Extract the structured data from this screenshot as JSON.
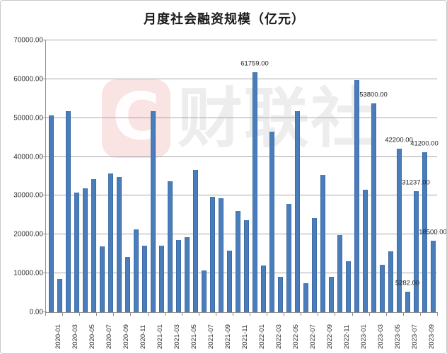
{
  "watermark": {
    "logo_letter": "C",
    "text": "财联社"
  },
  "chart_data": {
    "type": "bar",
    "title": "月度社会融资规模（亿元）",
    "xlabel": "",
    "ylabel": "",
    "ylim": [
      0,
      70000
    ],
    "ytick_step": 10000,
    "ytick_labels": [
      "0.00",
      "10000.00",
      "20000.00",
      "30000.00",
      "40000.00",
      "50000.00",
      "60000.00",
      "70000.00"
    ],
    "grid": true,
    "legend": "none",
    "bar_color": "#4a7ebb",
    "grid_color": "#a6a6a6",
    "x": [
      "2020-01",
      "2020-02",
      "2020-03",
      "2020-04",
      "2020-05",
      "2020-06",
      "2020-07",
      "2020-08",
      "2020-09",
      "2020-10",
      "2020-11",
      "2020-12",
      "2021-01",
      "2021-02",
      "2021-03",
      "2021-04",
      "2021-05",
      "2021-06",
      "2021-07",
      "2021-08",
      "2021-09",
      "2021-10",
      "2021-11",
      "2021-12",
      "2022-01",
      "2022-02",
      "2022-03",
      "2022-04",
      "2022-05",
      "2022-06",
      "2022-07",
      "2022-08",
      "2022-09",
      "2022-10",
      "2022-11",
      "2022-12",
      "2023-01",
      "2023-02",
      "2023-03",
      "2023-04",
      "2023-05",
      "2023-06",
      "2023-07",
      "2023-08",
      "2023-09",
      "2023-10"
    ],
    "values": [
      50674,
      8554,
      51830,
      30852,
      31917,
      34337,
      16938,
      35817,
      34727,
      14285,
      21343,
      17192,
      51753,
      17100,
      33673,
      18530,
      19263,
      36718,
      10752,
      29681,
      29326,
      15907,
      25983,
      23682,
      61759,
      11987,
      46538,
      9102,
      27921,
      51700,
      7561,
      24322,
      35412,
      9079,
      19900,
      13058,
      59866,
      31560,
      53800,
      12200,
      15600,
      42200,
      5282,
      31237,
      41200,
      18500
    ],
    "point_labels": {
      "2022-01": "61759.00",
      "2023-03": "53800.00",
      "2023-06": "42200.00",
      "2023-07": "5282.00",
      "2023-08": "31237.00",
      "2023-09": "41200.00",
      "2023-10": "18500.00"
    },
    "xtick_labels_shown": [
      "2020-01",
      "2020-03",
      "2020-05",
      "2020-07",
      "2020-09",
      "2020-11",
      "2021-01",
      "2021-03",
      "2021-05",
      "2021-07",
      "2021-09",
      "2021-11",
      "2022-01",
      "2022-03",
      "2022-05",
      "2022-07",
      "2022-09",
      "2022-11",
      "2023-01",
      "2023-03",
      "2023-05",
      "2023-07",
      "2023-09"
    ]
  }
}
